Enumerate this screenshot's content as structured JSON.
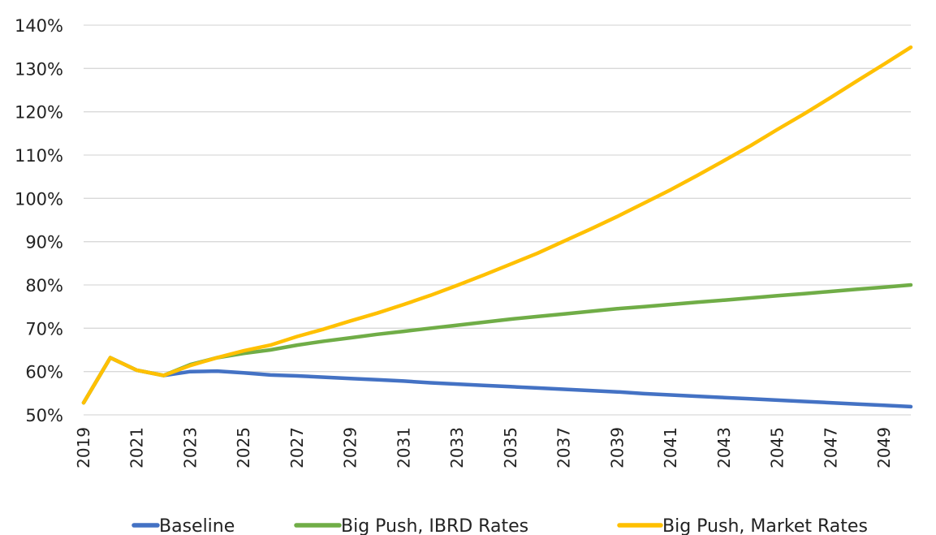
{
  "chart_data": {
    "type": "line",
    "title": "",
    "xlabel": "",
    "ylabel": "",
    "x": [
      2019,
      2020,
      2021,
      2022,
      2023,
      2024,
      2025,
      2026,
      2027,
      2028,
      2029,
      2030,
      2031,
      2032,
      2033,
      2034,
      2035,
      2036,
      2037,
      2038,
      2039,
      2040,
      2041,
      2042,
      2043,
      2044,
      2045,
      2046,
      2047,
      2048,
      2049,
      2050
    ],
    "xtick_labels": [
      "2019",
      "2021",
      "2023",
      "2025",
      "2027",
      "2029",
      "2031",
      "2033",
      "2035",
      "2037",
      "2039",
      "2041",
      "2043",
      "2045",
      "2047",
      "2049"
    ],
    "ylim": [
      50,
      140
    ],
    "ytick_values": [
      50,
      60,
      70,
      80,
      90,
      100,
      110,
      120,
      130,
      140
    ],
    "ytick_labels": [
      "50%",
      "60%",
      "70%",
      "80%",
      "90%",
      "100%",
      "110%",
      "120%",
      "130%",
      "140%"
    ],
    "grid": true,
    "legend_position": "bottom",
    "series": [
      {
        "name": "Baseline",
        "color": "#4472c4",
        "values": [
          52.8,
          63.2,
          60.3,
          59.1,
          60.0,
          60.1,
          59.7,
          59.2,
          59.0,
          58.7,
          58.4,
          58.1,
          57.8,
          57.4,
          57.1,
          56.8,
          56.5,
          56.2,
          55.9,
          55.6,
          55.3,
          54.9,
          54.6,
          54.3,
          54.0,
          53.7,
          53.4,
          53.1,
          52.8,
          52.5,
          52.2,
          51.9
        ]
      },
      {
        "name": "Big Push, IBRD Rates",
        "color": "#70ad47",
        "values": [
          52.8,
          63.2,
          60.3,
          59.1,
          61.6,
          63.2,
          64.2,
          65.0,
          66.1,
          67.0,
          67.8,
          68.6,
          69.3,
          70.0,
          70.7,
          71.4,
          72.1,
          72.7,
          73.3,
          73.9,
          74.5,
          75.0,
          75.5,
          76.0,
          76.5,
          77.0,
          77.5,
          78.0,
          78.5,
          79.0,
          79.5,
          80.0
        ]
      },
      {
        "name": "Big Push, Market Rates",
        "color": "#ffc000",
        "values": [
          52.8,
          63.2,
          60.3,
          59.1,
          61.4,
          63.2,
          64.8,
          66.1,
          68.1,
          69.8,
          71.7,
          73.5,
          75.5,
          77.6,
          79.9,
          82.3,
          84.8,
          87.3,
          90.1,
          92.9,
          95.8,
          98.9,
          102.0,
          105.3,
          108.7,
          112.2,
          115.9,
          119.5,
          123.3,
          127.2,
          131.0,
          134.9
        ]
      }
    ]
  }
}
